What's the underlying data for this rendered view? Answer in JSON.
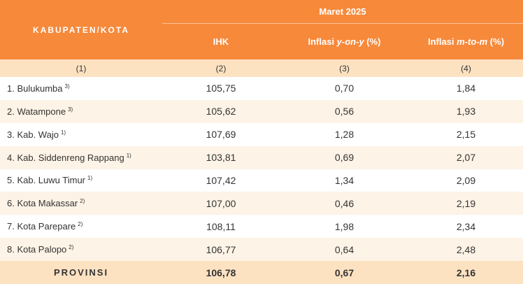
{
  "table": {
    "header": {
      "region": "KABUPATEN/KOTA",
      "period": "Maret 2025",
      "columns": [
        {
          "pre": "IHK",
          "em": "",
          "post": ""
        },
        {
          "pre": "Inflasi ",
          "em": "y-on-y",
          "post": " (%)"
        },
        {
          "pre": "Inflasi ",
          "em": "m-to-m",
          "post": " (%)"
        }
      ]
    },
    "numbering": [
      "(1)",
      "(2)",
      "(3)",
      "(4)"
    ],
    "rows": [
      {
        "name": "1. Bulukumba",
        "note": "3)",
        "cells": [
          "105,75",
          "0,70",
          "1,84"
        ]
      },
      {
        "name": "2. Watampone",
        "note": "3)",
        "cells": [
          "105,62",
          "0,56",
          "1,93"
        ]
      },
      {
        "name": "3. Kab. Wajo",
        "note": "1)",
        "cells": [
          "107,69",
          "1,28",
          "2,15"
        ]
      },
      {
        "name": "4. Kab. Siddenreng Rappang",
        "note": "1)",
        "cells": [
          "103,81",
          "0,69",
          "2,07"
        ]
      },
      {
        "name": "5. Kab. Luwu Timur",
        "note": "1)",
        "cells": [
          "107,42",
          "1,34",
          "2,09"
        ]
      },
      {
        "name": "6. Kota Makassar",
        "note": "2)",
        "cells": [
          "107,00",
          "0,46",
          "2,19"
        ]
      },
      {
        "name": "7. Kota Parepare",
        "note": "2)",
        "cells": [
          "108,11",
          "1,98",
          "2,34"
        ]
      },
      {
        "name": "8. Kota Palopo",
        "note": "2)",
        "cells": [
          "106,77",
          "0,64",
          "2,48"
        ]
      }
    ],
    "total": {
      "name": "PROVINSI",
      "cells": [
        "106,78",
        "0,67",
        "2,16"
      ]
    }
  }
}
